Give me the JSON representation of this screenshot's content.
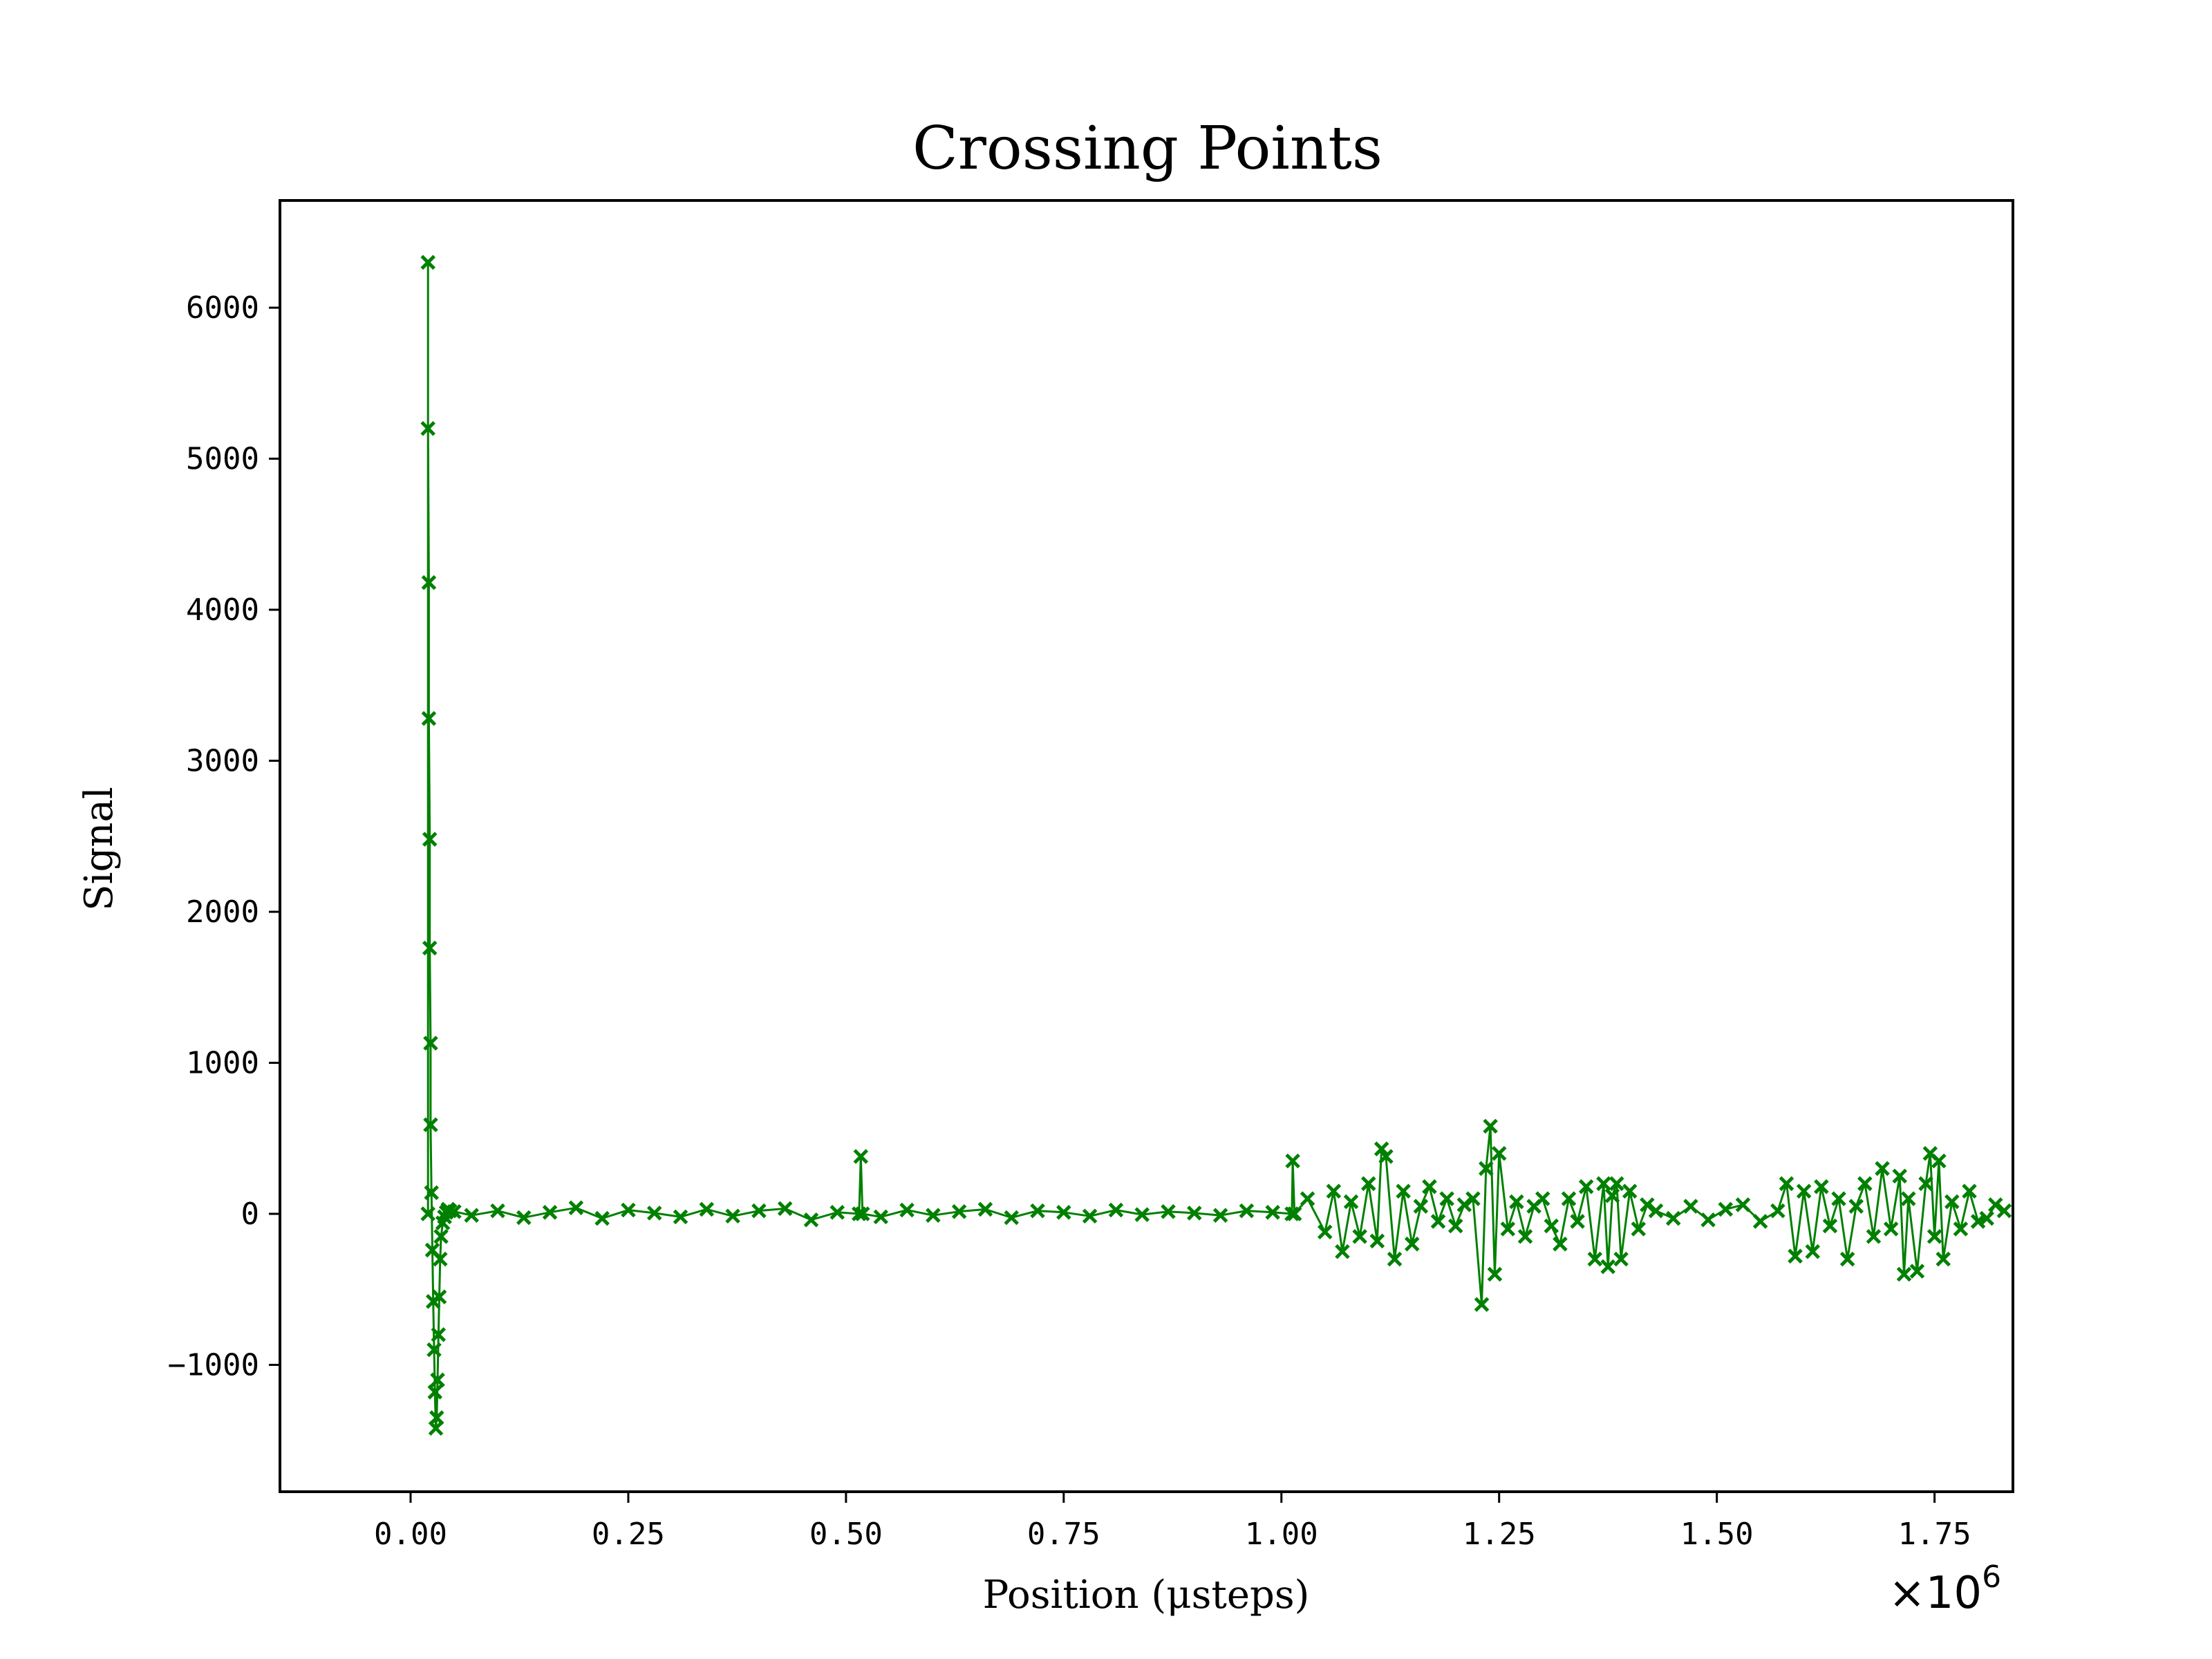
{
  "chart_data": {
    "type": "line",
    "title": "Crossing Points",
    "xlabel": "Position (μsteps)",
    "ylabel": "Signal",
    "x_offset_text": "×10",
    "x_offset_exponent": "6",
    "xlim": [
      -0.15,
      1.84
    ],
    "ylim": [
      -1840,
      6710
    ],
    "x_ticks": [
      0.0,
      0.25,
      0.5,
      0.75,
      1.0,
      1.25,
      1.5,
      1.75
    ],
    "x_tick_labels": [
      "0.00",
      "0.25",
      "0.50",
      "0.75",
      "1.00",
      "1.25",
      "1.50",
      "1.75"
    ],
    "y_ticks": [
      -1000,
      0,
      1000,
      2000,
      3000,
      4000,
      5000,
      6000
    ],
    "y_tick_labels": [
      "−1000",
      "0",
      "1000",
      "2000",
      "3000",
      "4000",
      "5000",
      "6000"
    ],
    "grid": false,
    "marker": "x",
    "color": "#008000",
    "series": [
      {
        "name": "",
        "x": [
          0.02,
          0.02,
          0.02,
          0.021,
          0.021,
          0.022,
          0.022,
          0.023,
          0.023,
          0.024,
          0.025,
          0.026,
          0.027,
          0.028,
          0.029,
          0.03,
          0.031,
          0.032,
          0.033,
          0.034,
          0.035,
          0.037,
          0.039,
          0.041,
          0.043,
          0.045,
          0.05,
          0.07,
          0.1,
          0.13,
          0.16,
          0.19,
          0.22,
          0.25,
          0.28,
          0.31,
          0.34,
          0.37,
          0.4,
          0.43,
          0.46,
          0.49,
          0.515,
          0.517,
          0.519,
          0.54,
          0.57,
          0.6,
          0.63,
          0.66,
          0.69,
          0.72,
          0.75,
          0.78,
          0.81,
          0.84,
          0.87,
          0.9,
          0.93,
          0.96,
          0.99,
          1.012,
          1.013,
          1.015,
          1.03,
          1.05,
          1.06,
          1.07,
          1.08,
          1.09,
          1.1,
          1.11,
          1.115,
          1.12,
          1.13,
          1.14,
          1.15,
          1.16,
          1.17,
          1.18,
          1.19,
          1.2,
          1.21,
          1.22,
          1.23,
          1.235,
          1.24,
          1.245,
          1.25,
          1.26,
          1.27,
          1.28,
          1.29,
          1.3,
          1.31,
          1.32,
          1.33,
          1.34,
          1.35,
          1.36,
          1.37,
          1.375,
          1.38,
          1.385,
          1.39,
          1.4,
          1.41,
          1.42,
          1.43,
          1.45,
          1.47,
          1.49,
          1.51,
          1.53,
          1.55,
          1.57,
          1.58,
          1.59,
          1.6,
          1.61,
          1.62,
          1.63,
          1.64,
          1.65,
          1.66,
          1.67,
          1.68,
          1.69,
          1.7,
          1.71,
          1.715,
          1.72,
          1.73,
          1.74,
          1.745,
          1.75,
          1.755,
          1.76,
          1.77,
          1.78,
          1.79,
          1.8,
          1.81,
          1.82,
          1.83
        ],
        "y": [
          0,
          6300,
          5200,
          4180,
          3280,
          2480,
          1760,
          1130,
          590,
          140,
          -240,
          -580,
          -900,
          -1180,
          -1420,
          -1350,
          -1100,
          -800,
          -550,
          -300,
          -150,
          -60,
          -20,
          10,
          30,
          20,
          15,
          -10,
          20,
          -25,
          10,
          40,
          -30,
          25,
          5,
          -20,
          30,
          -15,
          20,
          35,
          -40,
          10,
          0,
          380,
          0,
          -20,
          25,
          -10,
          15,
          30,
          -25,
          20,
          10,
          -15,
          25,
          -5,
          15,
          5,
          -10,
          20,
          10,
          0,
          350,
          0,
          100,
          -120,
          150,
          -250,
          80,
          -150,
          200,
          -180,
          430,
          380,
          -300,
          150,
          -200,
          50,
          180,
          -50,
          100,
          -80,
          60,
          100,
          -600,
          300,
          580,
          -400,
          400,
          -100,
          80,
          -150,
          50,
          100,
          -80,
          -200,
          100,
          -50,
          180,
          -300,
          200,
          -350,
          120,
          200,
          -300,
          150,
          -100,
          60,
          20,
          -30,
          50,
          -40,
          30,
          60,
          -50,
          20,
          200,
          -280,
          150,
          -250,
          180,
          -80,
          100,
          -300,
          50,
          200,
          -150,
          300,
          -100,
          250,
          -400,
          100,
          -380,
          200,
          400,
          -150,
          350,
          -300,
          80,
          -100,
          150,
          -50,
          -30,
          60,
          20
        ]
      }
    ]
  }
}
